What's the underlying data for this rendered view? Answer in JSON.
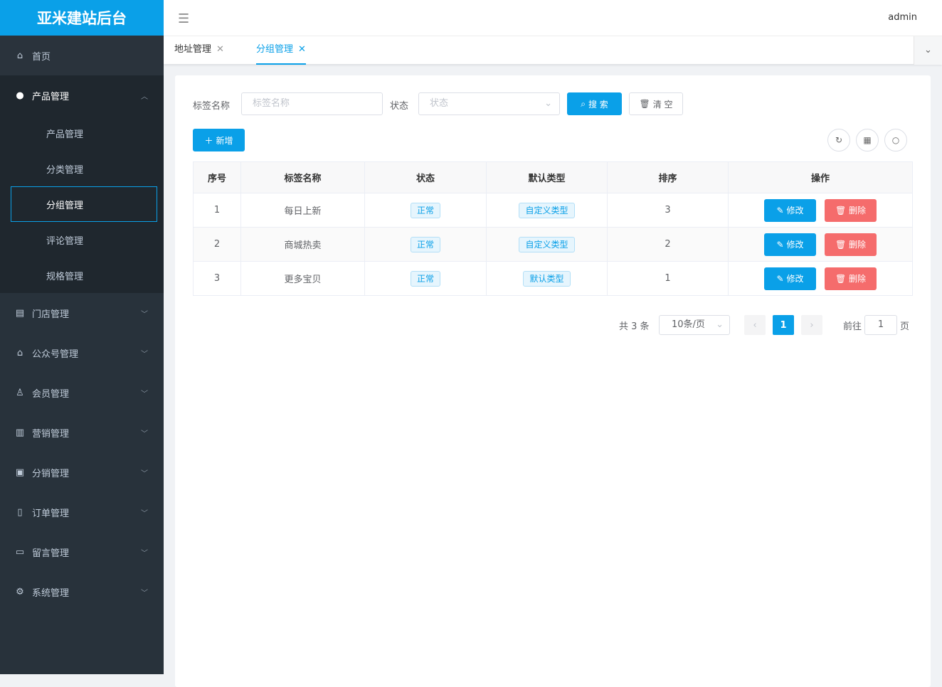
{
  "app": {
    "title": "亚米建站后台",
    "user": "admin"
  },
  "sidebar": {
    "items": [
      {
        "label": "首页",
        "icon": "home-icon"
      },
      {
        "label": "产品管理",
        "icon": "user-icon",
        "children": [
          "产品管理",
          "分类管理",
          "分组管理",
          "评论管理",
          "规格管理"
        ],
        "active_child": "分组管理"
      },
      {
        "label": "门店管理",
        "icon": "store-icon"
      },
      {
        "label": "公众号管理",
        "icon": "home-icon"
      },
      {
        "label": "会员管理",
        "icon": "member-icon"
      },
      {
        "label": "营销管理",
        "icon": "chart-icon"
      },
      {
        "label": "分销管理",
        "icon": "distribution-icon"
      },
      {
        "label": "订单管理",
        "icon": "order-icon"
      },
      {
        "label": "留言管理",
        "icon": "message-icon"
      },
      {
        "label": "系统管理",
        "icon": "gear-icon"
      }
    ]
  },
  "tabs": [
    {
      "label": "地址管理"
    },
    {
      "label": "分组管理",
      "active": true
    }
  ],
  "filters": {
    "name_label": "标签名称",
    "name_placeholder": "标签名称",
    "status_label": "状态",
    "status_placeholder": "状态",
    "search": "搜 索",
    "clear": "清 空"
  },
  "toolbar": {
    "add": "新增"
  },
  "table": {
    "columns": [
      "序号",
      "标签名称",
      "状态",
      "默认类型",
      "排序",
      "操作"
    ],
    "rows": [
      {
        "no": "1",
        "name": "每日上新",
        "status": "正常",
        "type": "自定义类型",
        "sort": "3"
      },
      {
        "no": "2",
        "name": "商城热卖",
        "status": "正常",
        "type": "自定义类型",
        "sort": "2"
      },
      {
        "no": "3",
        "name": "更多宝贝",
        "status": "正常",
        "type": "默认类型",
        "sort": "1"
      }
    ],
    "edit": "修改",
    "delete": "删除"
  },
  "pagination": {
    "total": "共 3 条",
    "page_size": "10条/页",
    "current": "1",
    "goto_label": "前往",
    "goto_value": "1",
    "page_suffix": "页"
  },
  "colors": {
    "primary": "#0aa0e8",
    "danger": "#f56c6c",
    "sidebar": "#28323b"
  }
}
